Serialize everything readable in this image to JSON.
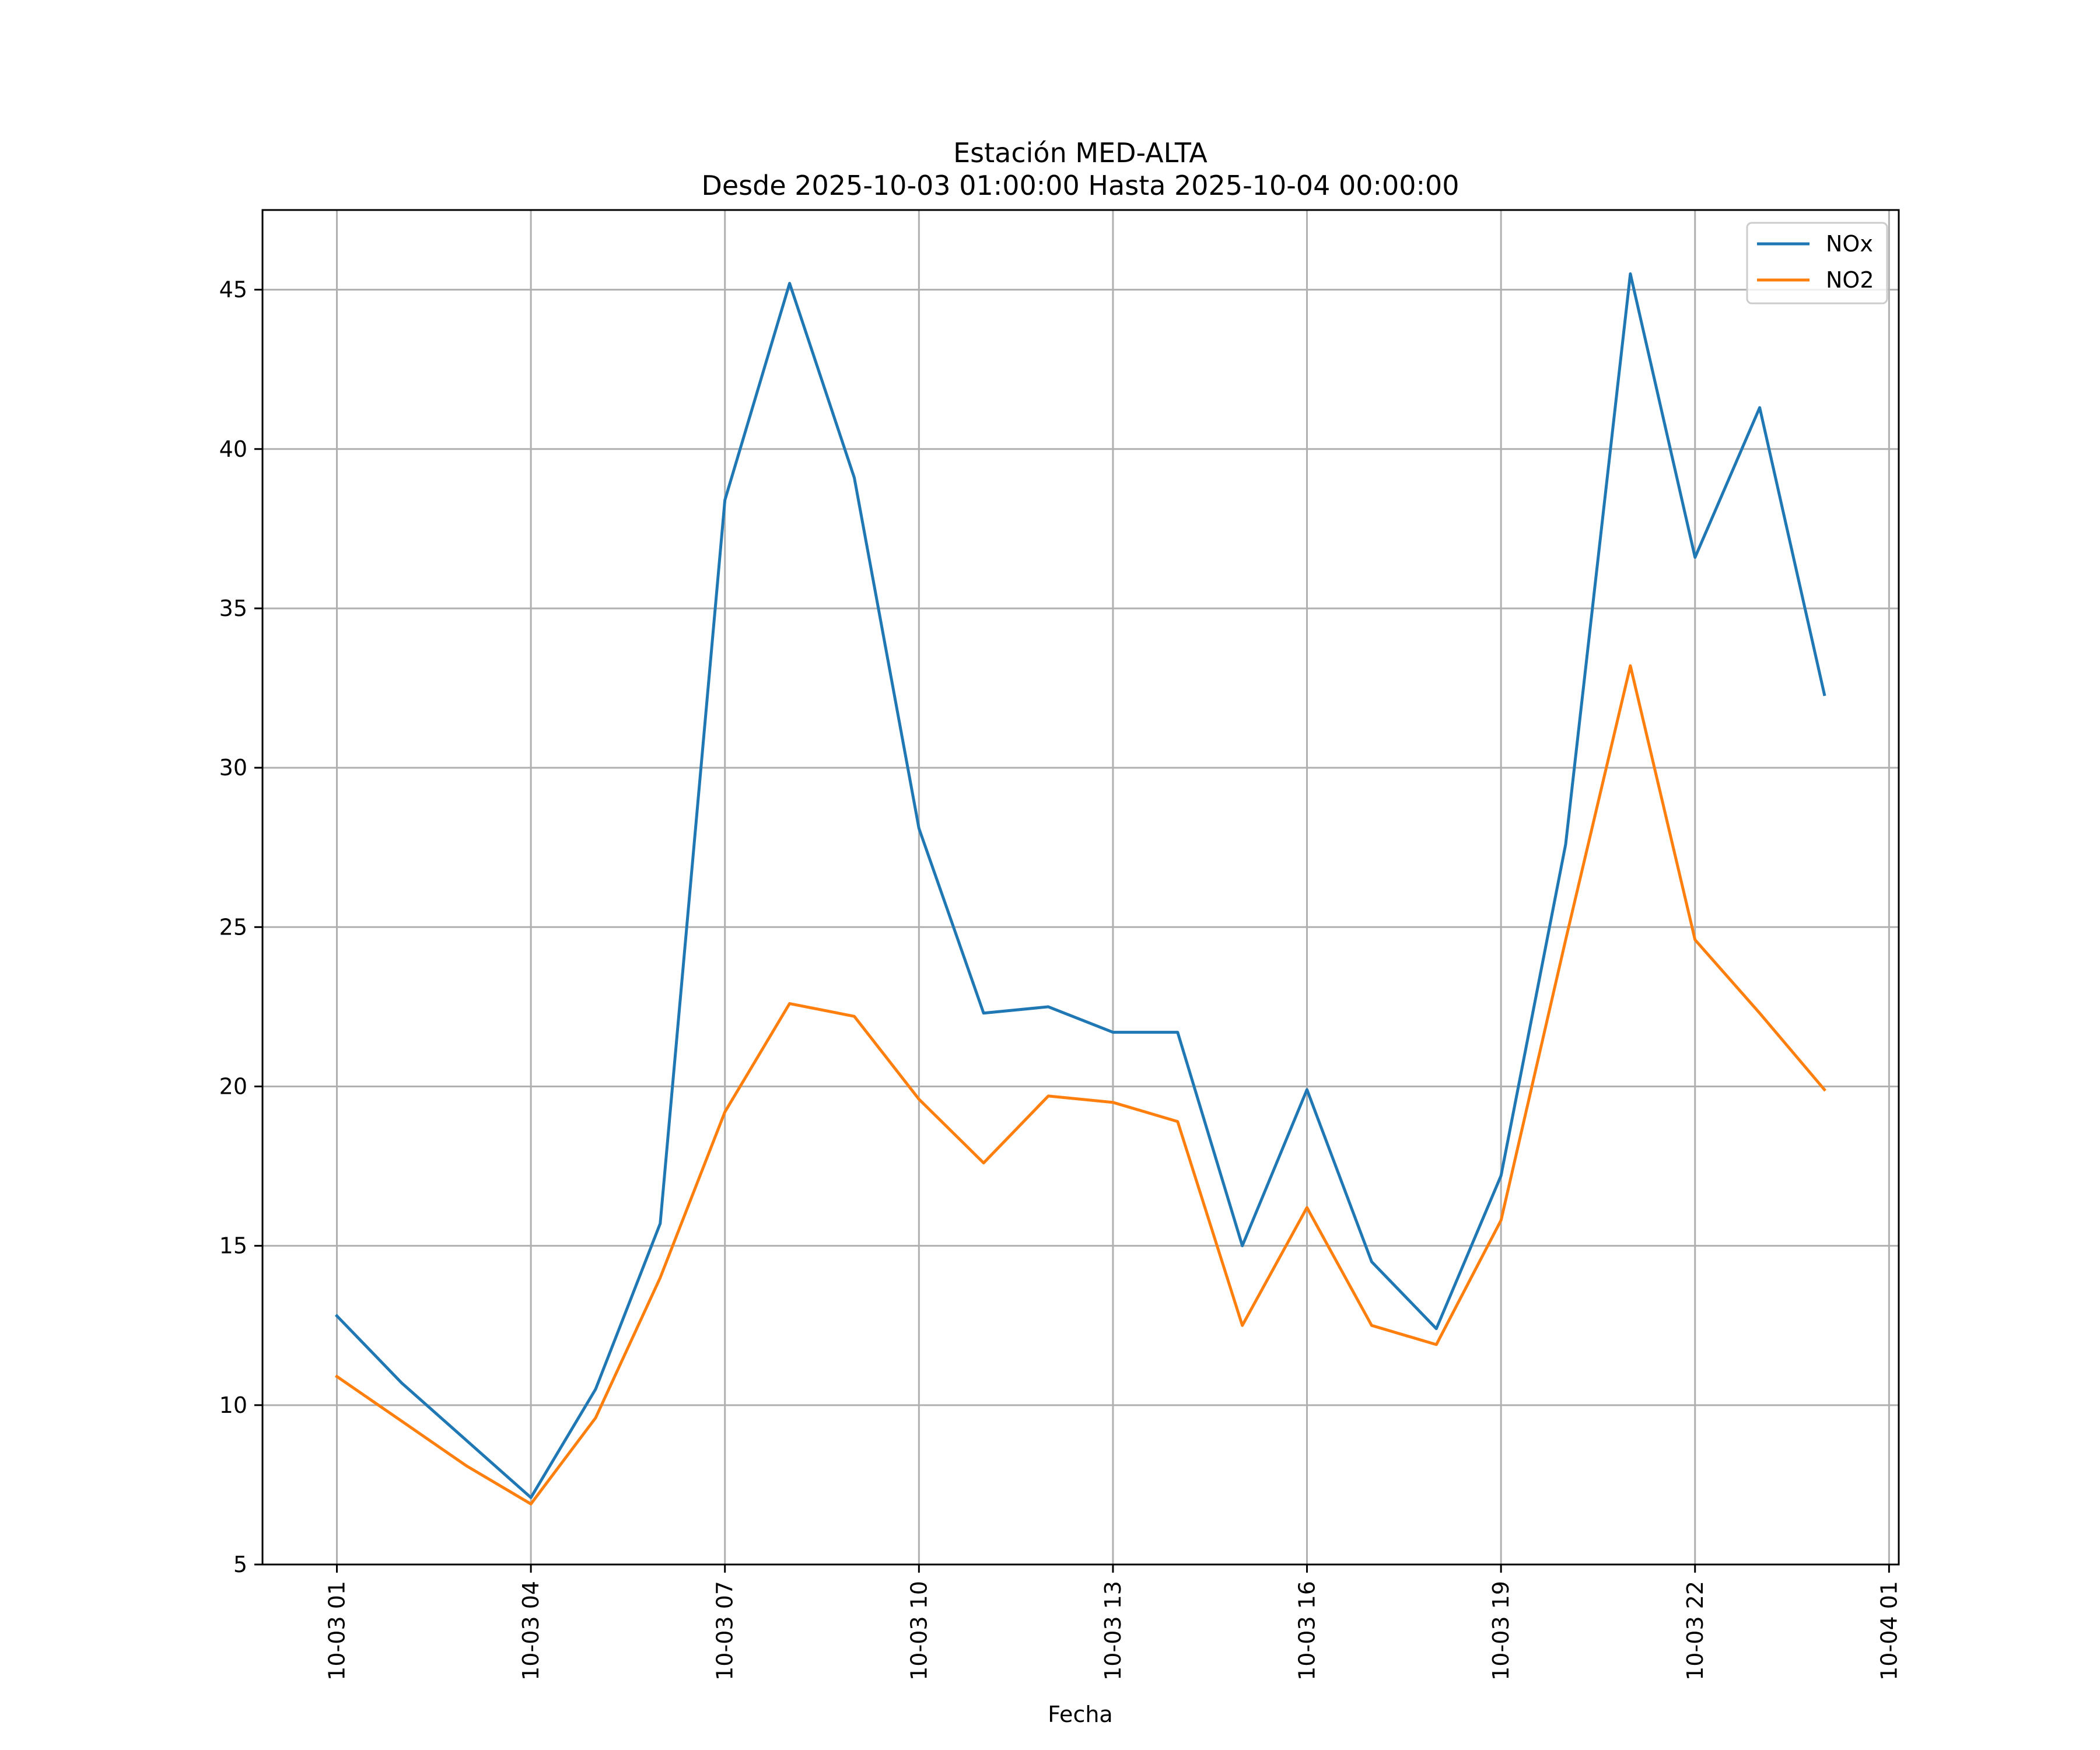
{
  "chart_data": {
    "type": "line",
    "title": "Estación MED-ALTA",
    "subtitle": "Desde 2025-10-03 01:00:00 Hasta 2025-10-04 00:00:00",
    "xlabel": "Fecha",
    "ylabel": "",
    "x_hours": [
      1,
      2,
      3,
      4,
      5,
      6,
      7,
      8,
      9,
      10,
      11,
      12,
      13,
      14,
      15,
      16,
      17,
      18,
      19,
      20,
      21,
      22,
      23,
      24
    ],
    "x_range_hours": [
      -0.15,
      25.15
    ],
    "ylim": [
      5,
      47.5
    ],
    "x_ticks": [
      {
        "hour": 1,
        "label": "10-03 01"
      },
      {
        "hour": 4,
        "label": "10-03 04"
      },
      {
        "hour": 7,
        "label": "10-03 07"
      },
      {
        "hour": 10,
        "label": "10-03 10"
      },
      {
        "hour": 13,
        "label": "10-03 13"
      },
      {
        "hour": 16,
        "label": "10-03 16"
      },
      {
        "hour": 19,
        "label": "10-03 19"
      },
      {
        "hour": 22,
        "label": "10-03 22"
      },
      {
        "hour": 25,
        "label": "10-04 01"
      }
    ],
    "y_ticks": [
      5,
      10,
      15,
      20,
      25,
      30,
      35,
      40,
      45
    ],
    "grid": true,
    "legend_position": "top-right",
    "series": [
      {
        "name": "NOx",
        "color": "#1f77b4",
        "values": [
          12.8,
          10.7,
          8.9,
          7.1,
          10.5,
          15.7,
          38.4,
          45.2,
          39.1,
          28.1,
          22.3,
          22.5,
          21.7,
          21.7,
          15.0,
          19.9,
          14.5,
          12.4,
          17.2,
          27.6,
          45.5,
          36.6,
          41.3,
          32.3
        ]
      },
      {
        "name": "NO2",
        "color": "#ff7f0e",
        "values": [
          10.9,
          9.5,
          8.1,
          6.9,
          9.6,
          14.0,
          19.2,
          22.6,
          22.2,
          19.6,
          17.6,
          19.7,
          19.5,
          18.9,
          12.5,
          16.2,
          12.5,
          11.9,
          15.8,
          24.6,
          33.2,
          24.6,
          22.3,
          19.9
        ]
      }
    ]
  }
}
